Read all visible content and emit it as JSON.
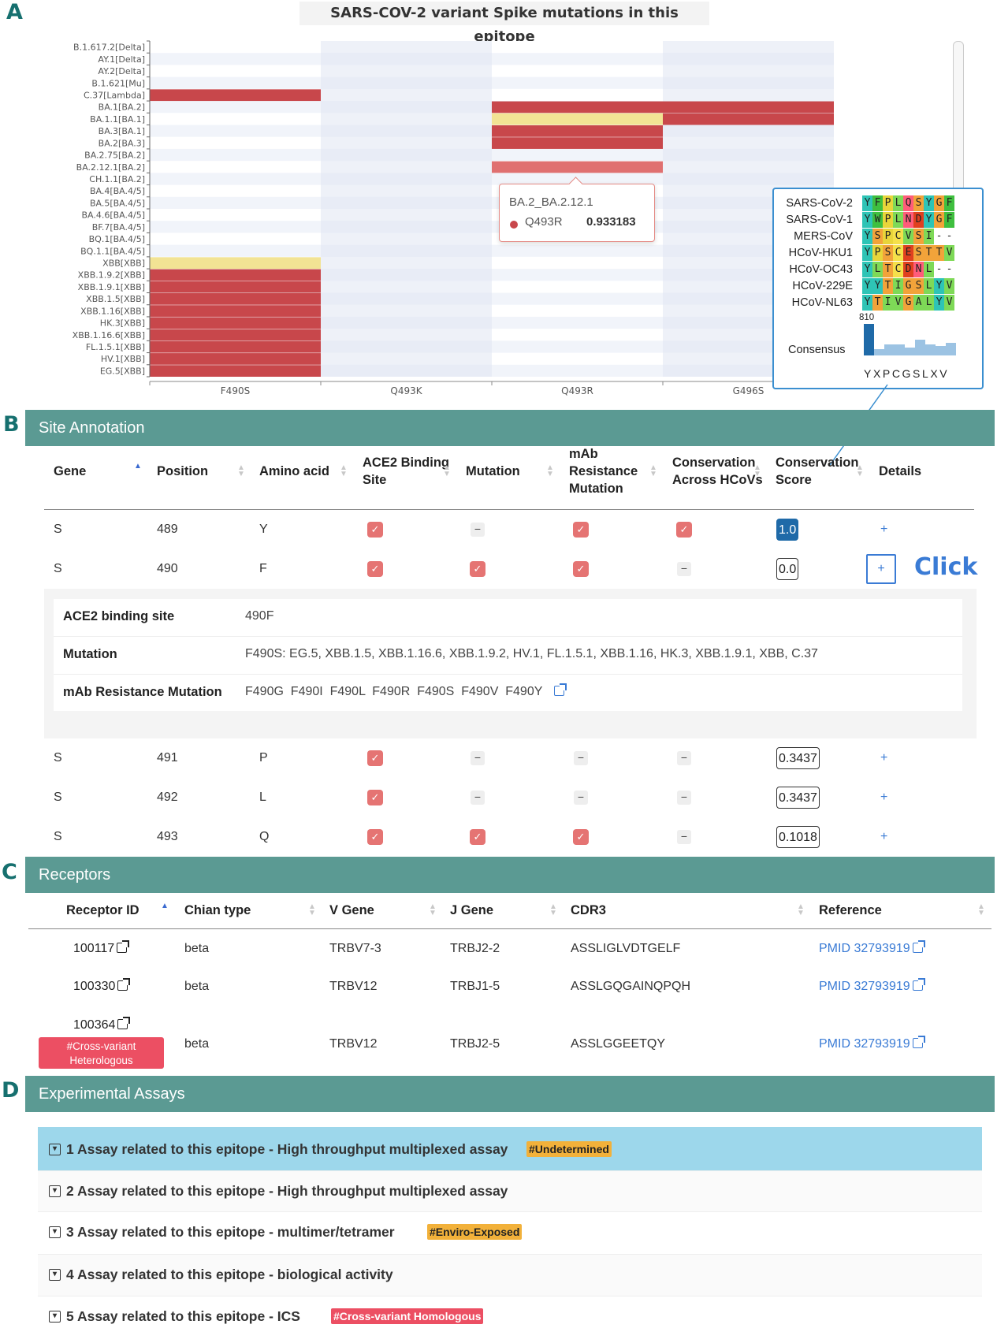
{
  "panels": {
    "a": "A",
    "b": "B",
    "c": "C",
    "d": "D"
  },
  "chart_data": {
    "type": "heatmap",
    "title": "SARS-COV-2 variant Spike mutations in this epitope",
    "variants": [
      "B.1.617.2[Delta]",
      "AY.1[Delta]",
      "AY.2[Delta]",
      "B.1.621[Mu]",
      "C.37[Lambda]",
      "BA.1[BA.2]",
      "BA.1.1[BA.1]",
      "BA.3[BA.1]",
      "BA.2[BA.3]",
      "BA.2.75[BA.2]",
      "BA.2.12.1[BA.2]",
      "CH.1.1[BA.2]",
      "BA.4[BA.4/5]",
      "BA.5[BA.4/5]",
      "BA.4.6[BA.4/5]",
      "BF.7[BA.4/5]",
      "BQ.1[BA.4/5]",
      "BQ.1.1[BA.4/5]",
      "XBB[XBB]",
      "XBB.1.9.2[XBB]",
      "XBB.1.9.1[XBB]",
      "XBB.1.5[XBB]",
      "XBB.1.16[XBB]",
      "HK.3[XBB]",
      "XBB.1.16.6[XBB]",
      "FL.1.5.1[XBB]",
      "HV.1[XBB]",
      "EG.5[XBB]"
    ],
    "mutations": [
      "F490S",
      "Q493K",
      "Q493R",
      "G496S"
    ],
    "cells": [
      {
        "variant": "C.37[Lambda]",
        "mutation": "F490S",
        "color": "#c8474b"
      },
      {
        "variant": "BA.1[BA.2]",
        "mutation": "Q493R",
        "color": "#c8474b"
      },
      {
        "variant": "BA.1[BA.2]",
        "mutation": "G496S",
        "color": "#c8474b"
      },
      {
        "variant": "BA.1.1[BA.1]",
        "mutation": "Q493R",
        "color": "#f2e394"
      },
      {
        "variant": "BA.1.1[BA.1]",
        "mutation": "G496S",
        "color": "#c8474b"
      },
      {
        "variant": "BA.3[BA.1]",
        "mutation": "Q493R",
        "color": "#c8474b"
      },
      {
        "variant": "BA.2[BA.3]",
        "mutation": "Q493R",
        "color": "#c8474b"
      },
      {
        "variant": "BA.2.12.1[BA.2]",
        "mutation": "Q493R",
        "color": "#e07070"
      },
      {
        "variant": "XBB[XBB]",
        "mutation": "F490S",
        "color": "#f2e394"
      },
      {
        "variant": "XBB.1.9.2[XBB]",
        "mutation": "F490S",
        "color": "#c8474b"
      },
      {
        "variant": "XBB.1.9.1[XBB]",
        "mutation": "F490S",
        "color": "#c8474b"
      },
      {
        "variant": "XBB.1.5[XBB]",
        "mutation": "F490S",
        "color": "#c8474b"
      },
      {
        "variant": "XBB.1.16[XBB]",
        "mutation": "F490S",
        "color": "#c8474b"
      },
      {
        "variant": "HK.3[XBB]",
        "mutation": "F490S",
        "color": "#c8474b"
      },
      {
        "variant": "XBB.1.16.6[XBB]",
        "mutation": "F490S",
        "color": "#c8474b"
      },
      {
        "variant": "FL.1.5.1[XBB]",
        "mutation": "F490S",
        "color": "#c8474b"
      },
      {
        "variant": "HV.1[XBB]",
        "mutation": "F490S",
        "color": "#c8474b"
      },
      {
        "variant": "EG.5[XBB]",
        "mutation": "F490S",
        "color": "#c8474b"
      }
    ],
    "tooltip": {
      "title": "BA.2_BA.2.12.1",
      "series": "Q493R",
      "value": "0.933183"
    }
  },
  "alignment": {
    "sequences": [
      {
        "name": "SARS-CoV-2",
        "aa": [
          "Y",
          "F",
          "P",
          "L",
          "Q",
          "S",
          "Y",
          "G",
          "F"
        ]
      },
      {
        "name": "SARS-CoV-1",
        "aa": [
          "Y",
          "W",
          "P",
          "L",
          "N",
          "D",
          "Y",
          "G",
          "F"
        ]
      },
      {
        "name": "MERS-CoV",
        "aa": [
          "Y",
          "S",
          "P",
          "C",
          "V",
          "S",
          "I",
          "-",
          "-"
        ]
      },
      {
        "name": "HCoV-HKU1",
        "aa": [
          "Y",
          "P",
          "S",
          "C",
          "E",
          "S",
          "T",
          "T",
          "V"
        ]
      },
      {
        "name": "HCoV-OC43",
        "aa": [
          "Y",
          "L",
          "T",
          "C",
          "D",
          "N",
          "L",
          "-",
          "-"
        ]
      },
      {
        "name": "HCoV-229E",
        "aa": [
          "Y",
          "Y",
          "T",
          "I",
          "G",
          "S",
          "L",
          "Y",
          "V"
        ]
      },
      {
        "name": "HCoV-NL63",
        "aa": [
          "Y",
          "T",
          "I",
          "V",
          "G",
          "A",
          "L",
          "Y",
          "V"
        ]
      }
    ],
    "position": "810",
    "consensus_label": "Consensus",
    "consensus": "YXPCGSLXV",
    "consensus_levels": [
      1.0,
      0.2,
      0.35,
      0.35,
      0.25,
      0.5,
      0.35,
      0.3,
      0.4
    ],
    "aa_colors": {
      "Y": "#2ec4b6",
      "F": "#3fbf3f",
      "W": "#3fbf3f",
      "P": "#e8d53a",
      "L": "#7ed957",
      "Q": "#ff5c7a",
      "N": "#ff5c7a",
      "S": "#f2a33a",
      "G": "#f2a33a",
      "D": "#e0401f",
      "E": "#e0401f",
      "V": "#7ed957",
      "I": "#7ed957",
      "C": "#f5e04a",
      "T": "#f2a33a",
      "A": "#7ed957",
      "-": "#ffffff"
    }
  },
  "site_annotation": {
    "title": "Site Annotation",
    "columns": {
      "gene": "Gene",
      "position": "Position",
      "amino_acid": "Amino acid",
      "ace2_1": "ACE2 Binding",
      "ace2_2": "Site",
      "mutation": "Mutation",
      "mab_1": "mAb",
      "mab_2": "Resistance",
      "mab_3": "Mutation",
      "cons_1": "Conservation",
      "cons_2": "Across HCoVs",
      "score_1": "Conservation",
      "score_2": "Score",
      "details": "Details"
    },
    "rows": [
      {
        "gene": "S",
        "position": "489",
        "aa": "Y",
        "ace2": true,
        "mutation": false,
        "mab": true,
        "cons": true,
        "score": "1.0",
        "details": "+"
      },
      {
        "gene": "S",
        "position": "490",
        "aa": "F",
        "ace2": true,
        "mutation": true,
        "mab": true,
        "cons": false,
        "score": "0.0",
        "details": "+"
      },
      {
        "gene": "S",
        "position": "491",
        "aa": "P",
        "ace2": true,
        "mutation": false,
        "mab": false,
        "cons": false,
        "score": "0.3437",
        "details": "+"
      },
      {
        "gene": "S",
        "position": "492",
        "aa": "L",
        "ace2": true,
        "mutation": false,
        "mab": false,
        "cons": false,
        "score": "0.3437",
        "details": "+"
      },
      {
        "gene": "S",
        "position": "493",
        "aa": "Q",
        "ace2": true,
        "mutation": true,
        "mab": true,
        "cons": false,
        "score": "0.1018",
        "details": "+"
      }
    ],
    "detail": {
      "ace2_label": "ACE2 binding site",
      "ace2_value": "490F",
      "mutation_label": "Mutation",
      "mutation_value": "F490S: EG.5, XBB.1.5, XBB.1.16.6, XBB.1.9.2, HV.1, FL.1.5.1, XBB.1.16, HK.3, XBB.1.9.1, XBB, C.37",
      "mab_label": "mAb Resistance Mutation",
      "mab_value": "F490G  F490I  F490L  F490R  F490S  F490V  F490Y"
    },
    "click_label": "Click"
  },
  "receptors": {
    "title": "Receptors",
    "columns": {
      "id": "Receptor ID",
      "chain": "Chian type",
      "v": "V Gene",
      "j": "J Gene",
      "cdr3": "CDR3",
      "ref": "Reference"
    },
    "rows": [
      {
        "id": "100117",
        "chain": "beta",
        "v": "TRBV7-3",
        "j": "TRBJ2-2",
        "cdr3": "ASSLIGLVDTGELF",
        "ref": "PMID 32793919"
      },
      {
        "id": "100330",
        "chain": "beta",
        "v": "TRBV12",
        "j": "TRBJ1-5",
        "cdr3": "ASSLGQGAINQPQH",
        "ref": "PMID 32793919"
      },
      {
        "id": "100364",
        "chain": "beta",
        "v": "TRBV12",
        "j": "TRBJ2-5",
        "cdr3": "ASSLGGEETQY",
        "ref": "PMID 32793919",
        "badge_1": "#Cross-variant",
        "badge_2": "Heterologous"
      }
    ]
  },
  "assays": {
    "title": "Experimental Assays",
    "items": [
      {
        "label": "1 Assay related to this epitope - High throughput multiplexed assay",
        "tag": "#Undetermined"
      },
      {
        "label": "2 Assay related to this epitope - High throughput multiplexed assay",
        "tag": ""
      },
      {
        "label": "3 Assay related to this epitope - multimer/tetramer",
        "tag": "#Enviro-Exposed"
      },
      {
        "label": "4 Assay related to this epitope - biological activity",
        "tag": ""
      },
      {
        "label": "5 Assay related to this epitope - ICS",
        "tag": "#Cross-variant Homologous"
      }
    ]
  }
}
